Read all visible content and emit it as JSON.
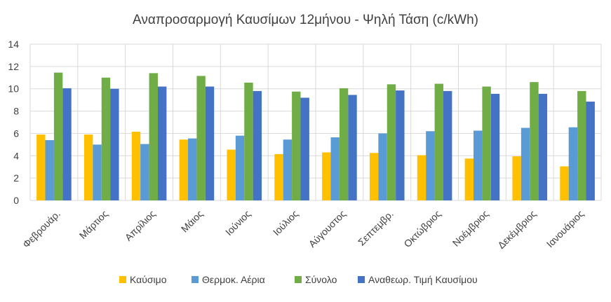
{
  "chart_data": {
    "type": "bar",
    "title": "Αναπροσαρμογή Καυσίμων 12μήνου - Ψηλή Τάση  (c/kWh)",
    "xlabel": "",
    "ylabel": "",
    "ylim": [
      0,
      14
    ],
    "yticks": [
      "0",
      "2",
      "4",
      "6",
      "8",
      "10",
      "12",
      "14"
    ],
    "grid": true,
    "legend_position": "bottom",
    "categories": [
      "Φεβρουάρ.",
      "Μάρτιος",
      "Απρίλιος",
      "Μάιος",
      "Ιούνιος",
      "Ιούλιος",
      "Αύγουστος",
      "Σεπτεμβρ.",
      "Οκτώβριος",
      "Νοέμβριος",
      "Δεκέμβριος",
      "Ιανουάριος"
    ],
    "series": [
      {
        "name": "Καύσιμο",
        "color": "#FFC000",
        "values": [
          5.9,
          5.9,
          6.15,
          5.45,
          4.55,
          4.15,
          4.3,
          4.25,
          4.05,
          3.75,
          3.95,
          3.05
        ]
      },
      {
        "name": "Θερμοκ. Αέρια",
        "color": "#5B9BD5",
        "values": [
          5.4,
          5.0,
          5.05,
          5.55,
          5.8,
          5.45,
          5.65,
          6.0,
          6.2,
          6.25,
          6.5,
          6.55
        ]
      },
      {
        "name": "Σύνολο",
        "color": "#70AD47",
        "values": [
          11.45,
          11.0,
          11.4,
          11.15,
          10.55,
          9.75,
          10.05,
          10.4,
          10.45,
          10.2,
          10.6,
          9.8
        ]
      },
      {
        "name": "Αναθεωρ. Τιμή Καυσίμου",
        "color": "#4472C4",
        "values": [
          10.05,
          10.0,
          10.2,
          10.2,
          9.8,
          9.2,
          9.45,
          9.85,
          9.8,
          9.55,
          9.55,
          8.85
        ]
      }
    ]
  }
}
